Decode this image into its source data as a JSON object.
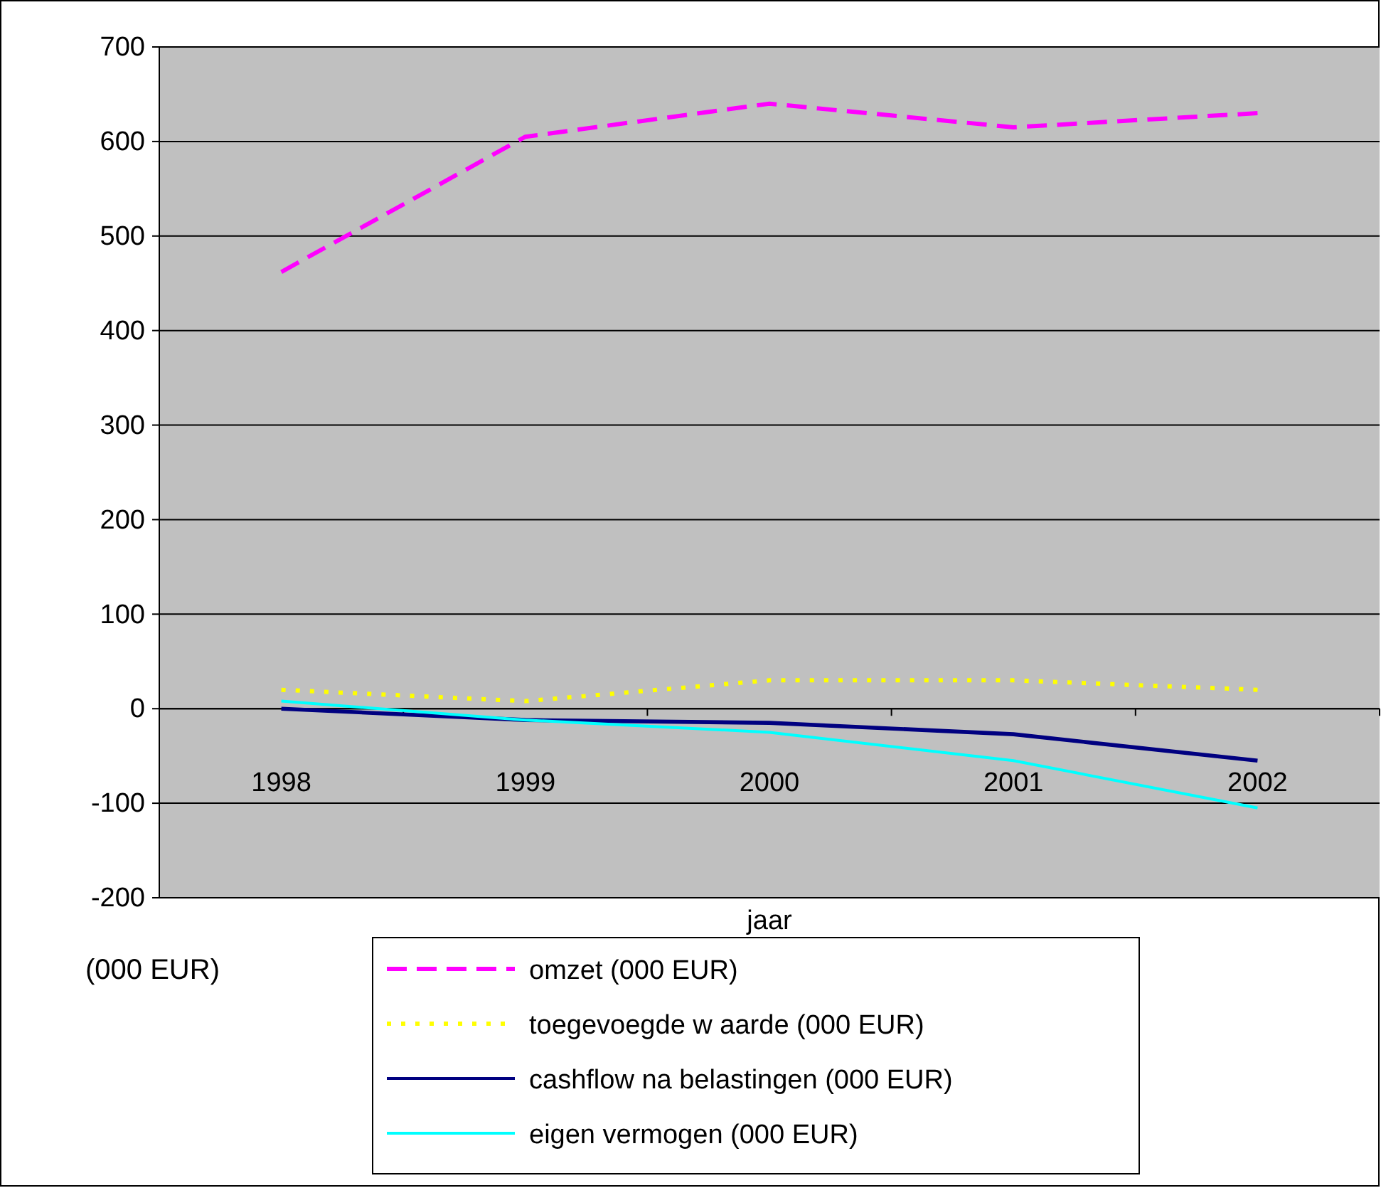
{
  "chart_data": {
    "type": "line",
    "xlabel": "jaar",
    "categories": [
      "1998",
      "1999",
      "2000",
      "2001",
      "2002"
    ],
    "ylim": [
      -200,
      700
    ],
    "yticks": [
      -200,
      -100,
      0,
      100,
      200,
      300,
      400,
      500,
      600,
      700
    ],
    "grid": "y",
    "legend": "bottom",
    "marker": "none",
    "annotations": [
      "(000 EUR)"
    ],
    "series": [
      {
        "name": "omzet (000 EUR)",
        "color": "#ff00ff",
        "line_style": "dashed",
        "values": [
          462,
          605,
          640,
          615,
          630
        ]
      },
      {
        "name": "toegevoegde w aarde (000 EUR)",
        "color": "#ffff00",
        "line_style": "dotted",
        "values": [
          20,
          8,
          30,
          30,
          20
        ]
      },
      {
        "name": "cashflow na belastingen (000 EUR)",
        "color": "#000080",
        "line_style": "solid",
        "values": [
          0,
          -12,
          -15,
          -27,
          -55
        ]
      },
      {
        "name": "eigen vermogen (000 EUR)",
        "color": "#00ffff",
        "line_style": "solid",
        "values": [
          8,
          -12,
          -25,
          -55,
          -105
        ]
      }
    ]
  }
}
